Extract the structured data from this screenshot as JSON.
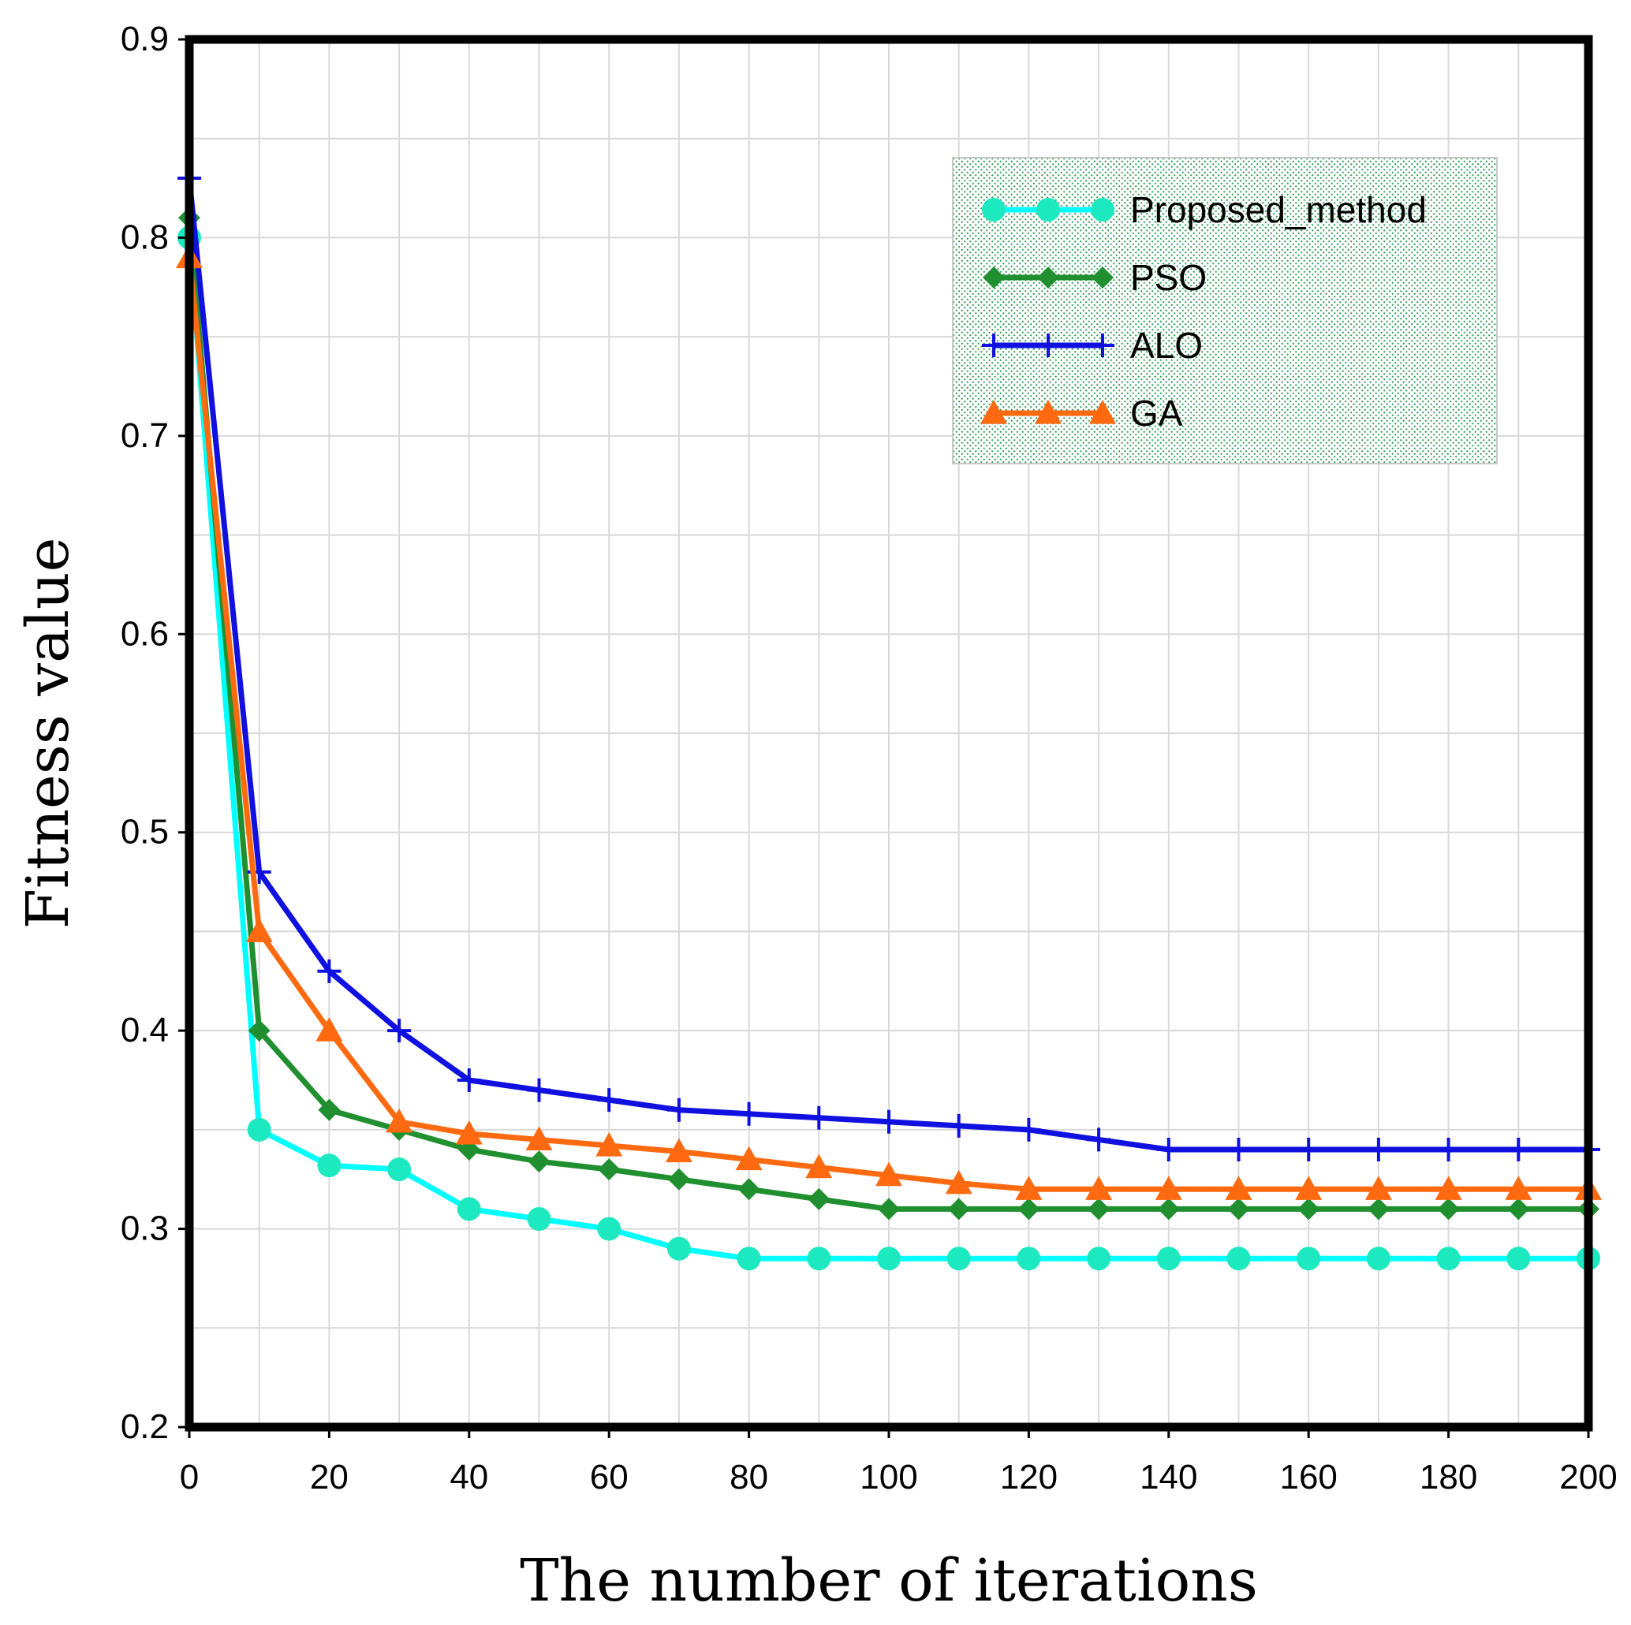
{
  "chart_data": {
    "type": "line",
    "title": "",
    "xlabel": "The number of iterations",
    "ylabel": "Fitness value",
    "xlim": [
      0,
      200
    ],
    "ylim": [
      0.2,
      0.9
    ],
    "xticks": [
      0,
      20,
      40,
      60,
      80,
      100,
      120,
      140,
      160,
      180,
      200
    ],
    "xtick_labels": [
      "0",
      "20",
      "40",
      "60",
      "80",
      "100",
      "120",
      "140",
      "160",
      "180",
      "200"
    ],
    "yticks": [
      0.2,
      0.3,
      0.4,
      0.5,
      0.6,
      0.7,
      0.8,
      0.9
    ],
    "ytick_labels": [
      "0.2",
      "0.3",
      "0.4",
      "0.5",
      "0.6",
      "0.7",
      "0.8",
      "0.9"
    ],
    "grid": true,
    "legend_position": "top-right",
    "x": [
      0,
      10,
      20,
      30,
      40,
      50,
      60,
      70,
      80,
      90,
      100,
      110,
      120,
      130,
      140,
      150,
      160,
      170,
      180,
      190,
      200
    ],
    "series": [
      {
        "name": "Proposed_method",
        "color": "#00ffff",
        "marker_color": "#1de9c0",
        "marker": "circle",
        "values": [
          0.8,
          0.35,
          0.332,
          0.33,
          0.31,
          0.305,
          0.3,
          0.29,
          0.285,
          0.285,
          0.285,
          0.285,
          0.285,
          0.285,
          0.285,
          0.285,
          0.285,
          0.285,
          0.285,
          0.285,
          0.285
        ]
      },
      {
        "name": "PSO",
        "color": "#1f8f2f",
        "marker_color": "#1f8f2f",
        "marker": "diamond",
        "values": [
          0.81,
          0.4,
          0.36,
          0.35,
          0.34,
          0.334,
          0.33,
          0.325,
          0.32,
          0.315,
          0.31,
          0.31,
          0.31,
          0.31,
          0.31,
          0.31,
          0.31,
          0.31,
          0.31,
          0.31,
          0.31
        ]
      },
      {
        "name": "ALO",
        "color": "#1010e0",
        "marker_color": "#1010e0",
        "marker": "plus",
        "values": [
          0.83,
          0.48,
          0.43,
          0.4,
          0.375,
          0.37,
          0.365,
          0.36,
          0.358,
          0.356,
          0.354,
          0.352,
          0.35,
          0.345,
          0.34,
          0.34,
          0.34,
          0.34,
          0.34,
          0.34,
          0.34
        ]
      },
      {
        "name": "GA",
        "color": "#ff6a10",
        "marker_color": "#ff6a10",
        "marker": "triangle",
        "values": [
          0.79,
          0.45,
          0.4,
          0.354,
          0.348,
          0.345,
          0.342,
          0.339,
          0.335,
          0.331,
          0.327,
          0.323,
          0.32,
          0.32,
          0.32,
          0.32,
          0.32,
          0.32,
          0.32,
          0.32,
          0.32
        ]
      }
    ]
  }
}
